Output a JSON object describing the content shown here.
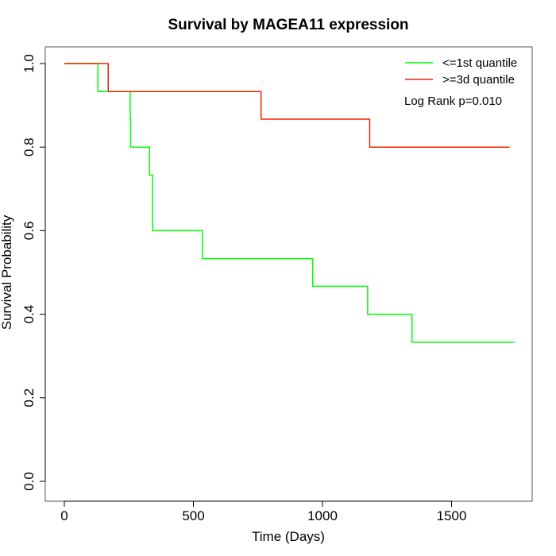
{
  "chart_data": {
    "type": "line",
    "title": "Survival by MAGEA11 expression",
    "xlabel": "Time (Days)",
    "ylabel": "Survival Probability",
    "xlim": [
      0,
      1750
    ],
    "ylim": [
      0,
      1
    ],
    "x_ticks": [
      0,
      500,
      1000,
      1500
    ],
    "y_ticks": [
      0.0,
      0.2,
      0.4,
      0.6,
      0.8,
      1.0
    ],
    "x_tick_labels": [
      "0",
      "500",
      "1000",
      "1500"
    ],
    "y_tick_labels": [
      "0.0",
      "0.2",
      "0.4",
      "0.6",
      "0.8",
      "1.0"
    ],
    "grid": false,
    "legend_position": "top-right",
    "annotation": "Log Rank p=0.010",
    "series": [
      {
        "name": "<=1st quantile",
        "color": "#00ff00",
        "x": [
          0,
          130,
          255,
          257,
          330,
          342,
          535,
          962,
          1175,
          1347,
          1745
        ],
        "y": [
          1.0,
          0.933,
          0.867,
          0.8,
          0.733,
          0.6,
          0.533,
          0.467,
          0.4,
          0.333,
          0.333
        ]
      },
      {
        "name": ">=3d quantile",
        "color": "#ee2200",
        "x": [
          0,
          170,
          762,
          1183,
          1725
        ],
        "y": [
          1.0,
          0.933,
          0.867,
          0.8,
          0.8
        ]
      }
    ]
  }
}
